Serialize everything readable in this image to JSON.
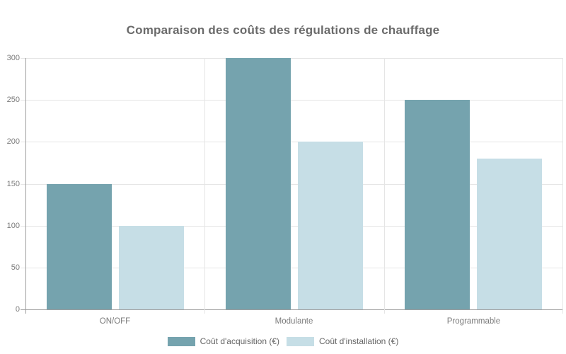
{
  "title": "Comparaison des coûts des régulations de chauffage",
  "chart_data": {
    "type": "bar",
    "categories": [
      "ON/OFF",
      "Modulante",
      "Programmable"
    ],
    "series": [
      {
        "name": "Coût d'acquisition (€)",
        "values": [
          150,
          300,
          250
        ],
        "color": "#75a3ae"
      },
      {
        "name": "Coût d'installation (€)",
        "values": [
          100,
          200,
          180
        ],
        "color": "#c6dee6"
      }
    ],
    "title": "Comparaison des coûts des régulations de chauffage",
    "xlabel": "",
    "ylabel": "",
    "ylim": [
      0,
      300
    ],
    "yticks": [
      0,
      50,
      100,
      150,
      200,
      250,
      300
    ],
    "grid": true,
    "legend_position": "bottom"
  },
  "colors": {
    "background": "#ffffff",
    "grid": "#e5e5e5",
    "axis": "#9e9e9e",
    "tick_label": "#7b7b7b",
    "legend_text": "#666666",
    "title_text": "#6a6a6a"
  }
}
